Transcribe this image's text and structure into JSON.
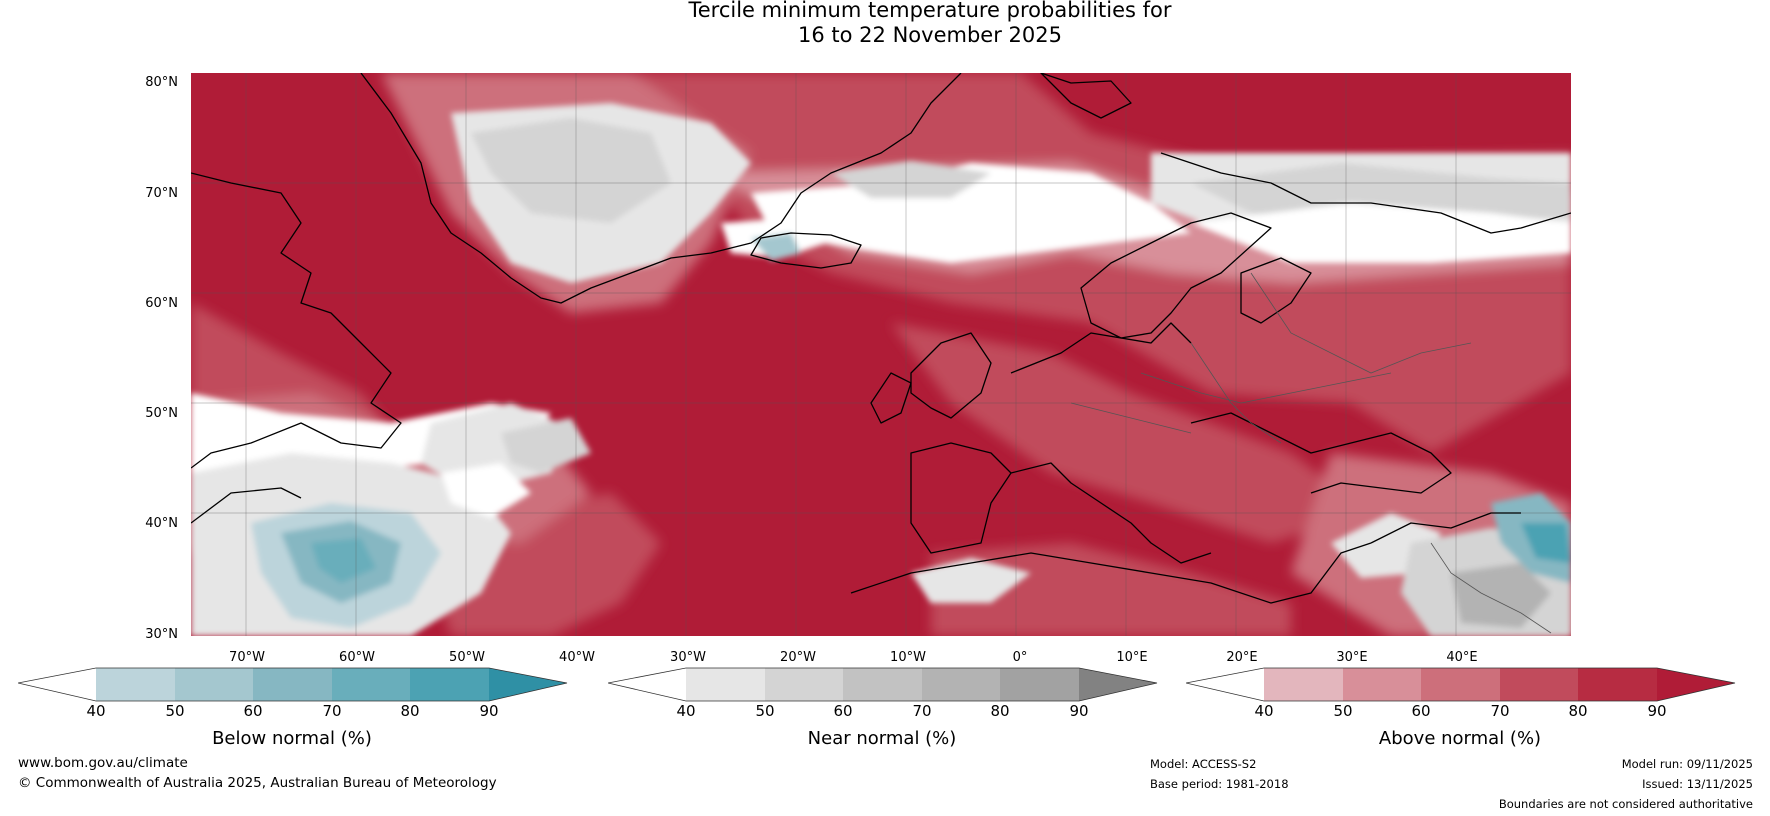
{
  "title": {
    "line1": "Tercile minimum temperature probabilities for",
    "line2": "16 to 22 November 2025"
  },
  "map": {
    "region": "North Atlantic and Europe",
    "lat_labels": [
      "80°N",
      "70°N",
      "60°N",
      "50°N",
      "40°N",
      "30°N"
    ],
    "lon_labels": [
      "70°W",
      "60°W",
      "50°W",
      "40°W",
      "30°W",
      "20°W",
      "10°W",
      "0°",
      "10°E",
      "20°E",
      "30°E",
      "40°E"
    ]
  },
  "colorbars": [
    {
      "label": "Below normal (%)",
      "ticks": [
        "40",
        "50",
        "60",
        "70",
        "80",
        "90"
      ],
      "colors": [
        "#ffffff",
        "#bcd4db",
        "#a4c7cf",
        "#86b7c2",
        "#69aebb",
        "#4ca2b3",
        "#2f90a5"
      ]
    },
    {
      "label": "Near normal (%)",
      "ticks": [
        "40",
        "50",
        "60",
        "70",
        "80",
        "90"
      ],
      "colors": [
        "#ffffff",
        "#e6e6e6",
        "#d4d4d4",
        "#c2c2c2",
        "#b3b3b3",
        "#a2a2a2",
        "#828282"
      ]
    },
    {
      "label": "Above normal (%)",
      "ticks": [
        "40",
        "50",
        "60",
        "70",
        "80",
        "90"
      ],
      "colors": [
        "#ffffff",
        "#e3b6bd",
        "#d88f99",
        "#cd6f7b",
        "#c14b5c",
        "#b72c42",
        "#b01c37"
      ]
    }
  ],
  "footer": {
    "website": "www.bom.gov.au/climate",
    "copyright": "© Commonwealth of Australia 2025, Australian Bureau of Meteorology",
    "model": "Model: ACCESS-S2",
    "base_period": "Base period: 1981-2018",
    "model_run": "Model run: 09/11/2025",
    "issued": "Issued: 13/11/2025",
    "disclaimer": "Boundaries are not considered authoritative"
  }
}
